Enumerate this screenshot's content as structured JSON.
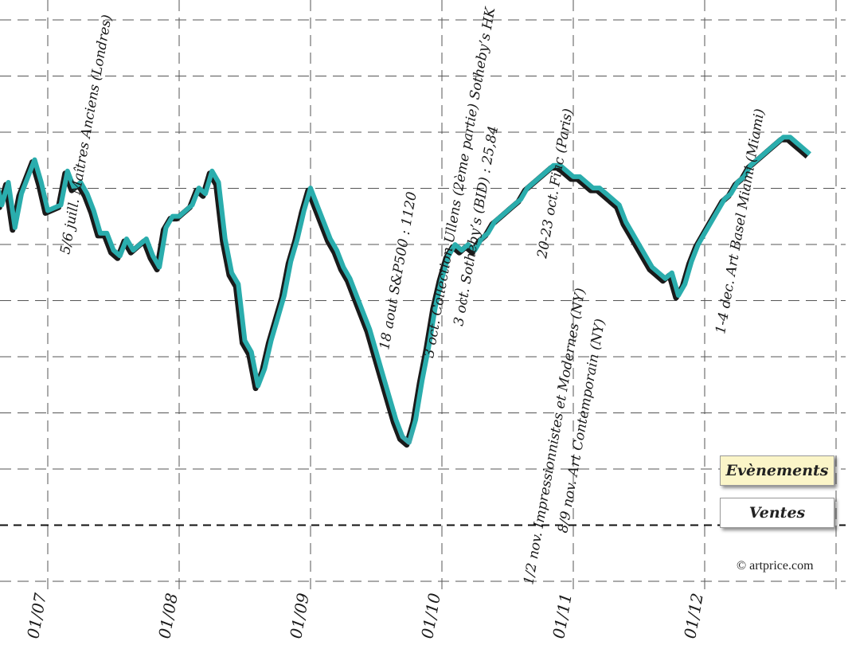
{
  "chart_data": {
    "type": "line",
    "title": "",
    "xlabel": "",
    "ylabel": "",
    "x_ticks": [
      "01/07",
      "01/08",
      "01/09",
      "01/10",
      "01/11",
      "01/12"
    ],
    "grid": true,
    "legend": {
      "events_label": "Evènements",
      "sales_label": "Ventes",
      "placement": "bottom-right"
    },
    "copyright": "© artprice.com",
    "series": [
      {
        "values": [
          [
            2006.5,
            76
          ],
          [
            2006.55,
            81
          ],
          [
            2006.6,
            81
          ],
          [
            2006.65,
            76
          ],
          [
            2006.7,
            80
          ],
          [
            2006.75,
            72
          ],
          [
            2006.8,
            78
          ],
          [
            2006.85,
            81
          ],
          [
            2006.9,
            84
          ],
          [
            2006.95,
            80
          ],
          [
            2007.0,
            75
          ],
          [
            2007.1,
            76
          ],
          [
            2007.15,
            82
          ],
          [
            2007.2,
            79
          ],
          [
            2007.25,
            80
          ],
          [
            2007.3,
            78
          ],
          [
            2007.35,
            75
          ],
          [
            2007.4,
            71
          ],
          [
            2007.45,
            71
          ],
          [
            2007.5,
            68
          ],
          [
            2007.55,
            67
          ],
          [
            2007.6,
            70
          ],
          [
            2007.65,
            68
          ],
          [
            2007.7,
            69
          ],
          [
            2007.75,
            70
          ],
          [
            2007.8,
            67
          ],
          [
            2007.85,
            65
          ],
          [
            2007.9,
            72
          ],
          [
            2007.95,
            74
          ],
          [
            2008.0,
            74
          ],
          [
            2008.05,
            75
          ],
          [
            2008.1,
            76
          ],
          [
            2008.15,
            79
          ],
          [
            2008.2,
            78
          ],
          [
            2008.25,
            82
          ],
          [
            2008.3,
            80
          ],
          [
            2008.35,
            70
          ],
          [
            2008.4,
            64
          ],
          [
            2008.45,
            62
          ],
          [
            2008.5,
            52
          ],
          [
            2008.55,
            50
          ],
          [
            2008.6,
            44
          ],
          [
            2008.65,
            47
          ],
          [
            2008.7,
            52
          ],
          [
            2008.75,
            56
          ],
          [
            2008.8,
            60
          ],
          [
            2008.85,
            66
          ],
          [
            2008.9,
            70
          ],
          [
            2008.95,
            75
          ],
          [
            2009.0,
            79
          ],
          [
            2009.05,
            76
          ],
          [
            2009.1,
            73
          ],
          [
            2009.15,
            70
          ],
          [
            2009.2,
            68
          ],
          [
            2009.25,
            65
          ],
          [
            2009.3,
            63
          ],
          [
            2009.35,
            60
          ],
          [
            2009.4,
            57
          ],
          [
            2009.45,
            54
          ],
          [
            2009.5,
            50
          ],
          [
            2009.55,
            46
          ],
          [
            2009.6,
            42
          ],
          [
            2009.65,
            38
          ],
          [
            2009.7,
            35
          ],
          [
            2009.75,
            34
          ],
          [
            2009.8,
            38
          ],
          [
            2009.85,
            45
          ],
          [
            2009.9,
            51
          ],
          [
            2009.95,
            58
          ],
          [
            2010.0,
            63
          ],
          [
            2010.05,
            67
          ],
          [
            2010.1,
            69
          ],
          [
            2010.15,
            68
          ],
          [
            2010.2,
            69
          ],
          [
            2010.25,
            68
          ],
          [
            2010.3,
            70
          ],
          [
            2010.35,
            71
          ],
          [
            2010.4,
            73
          ],
          [
            2010.45,
            74
          ],
          [
            2010.5,
            75
          ],
          [
            2010.55,
            76
          ],
          [
            2010.6,
            77
          ],
          [
            2010.65,
            79
          ],
          [
            2010.7,
            80
          ],
          [
            2010.75,
            81
          ],
          [
            2010.8,
            82
          ],
          [
            2010.85,
            83
          ],
          [
            2010.9,
            83
          ],
          [
            2010.95,
            82
          ],
          [
            2011.0,
            81
          ],
          [
            2011.05,
            81
          ],
          [
            2011.1,
            80
          ],
          [
            2011.15,
            79
          ],
          [
            2011.2,
            79
          ],
          [
            2011.25,
            78
          ],
          [
            2011.3,
            77
          ],
          [
            2011.35,
            76
          ],
          [
            2011.4,
            73
          ],
          [
            2011.45,
            71
          ],
          [
            2011.5,
            69
          ],
          [
            2011.55,
            67
          ],
          [
            2011.6,
            65
          ],
          [
            2011.65,
            64
          ],
          [
            2011.7,
            63
          ],
          [
            2011.75,
            64
          ],
          [
            2011.8,
            60
          ],
          [
            2011.85,
            62
          ],
          [
            2011.9,
            66
          ],
          [
            2011.95,
            69
          ],
          [
            2012.0,
            71
          ],
          [
            2012.05,
            73
          ],
          [
            2012.1,
            75
          ],
          [
            2012.15,
            77
          ],
          [
            2012.2,
            78
          ],
          [
            2012.25,
            80
          ],
          [
            2012.3,
            81
          ],
          [
            2012.35,
            83
          ],
          [
            2012.4,
            84
          ],
          [
            2012.45,
            85
          ],
          [
            2012.5,
            86
          ],
          [
            2012.55,
            87
          ],
          [
            2012.6,
            88
          ],
          [
            2012.65,
            88
          ],
          [
            2012.7,
            87
          ],
          [
            2012.75,
            86
          ],
          [
            2012.8,
            85
          ]
        ],
        "color": "#2aadad",
        "dip_color": "#e0226a"
      }
    ],
    "annotations": [
      {
        "text": "5/6 juill. Maîtres Anciens (Londres)",
        "highlight": false
      },
      {
        "text": "18 aout S&P500 : 1120",
        "highlight": true
      },
      {
        "text": "3 oct. Collection Ullens (2ème partie) Sotheby’s HK",
        "highlight": false
      },
      {
        "text": "3 oct. Sotheby’s (BID) : 25,84",
        "highlight": true
      },
      {
        "text": "20-23 oct. Fiac (Paris)",
        "highlight": false
      },
      {
        "text": "1/2 nov. Impressionnistes et Modernes (NY)",
        "highlight": false
      },
      {
        "text": "8/9 nov. Art Contemporain (NY)",
        "highlight": false
      },
      {
        "text": "1-4 dec. Art Basel Miami (Miami)",
        "highlight": false
      }
    ],
    "colors": {
      "line": "#2aadad",
      "dip": "#e0226a",
      "highlight": "#fbf5c8",
      "grid": "#555555"
    }
  }
}
